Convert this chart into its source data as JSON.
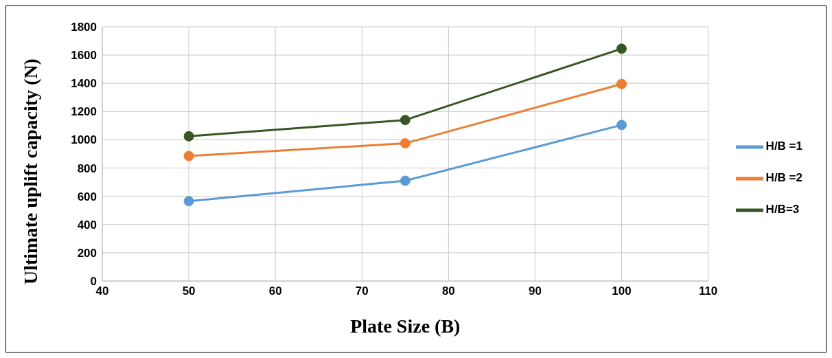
{
  "chart_data": {
    "type": "line",
    "xlabel": "Plate Size (B)",
    "ylabel": "Ultimate uplift capacity (N)",
    "x": [
      50,
      75,
      100
    ],
    "series": [
      {
        "name": "H/B =1",
        "color": "#5b9bd5",
        "values": [
          565,
          710,
          1105
        ]
      },
      {
        "name": "H/B =2",
        "color": "#ed7d31",
        "values": [
          885,
          975,
          1395
        ]
      },
      {
        "name": "H/B=3",
        "color": "#375623",
        "values": [
          1025,
          1140,
          1645
        ]
      }
    ],
    "xlim": [
      40,
      110
    ],
    "xticks": [
      40,
      50,
      60,
      70,
      80,
      90,
      100,
      110
    ],
    "ylim": [
      0,
      1800
    ],
    "yticks": [
      0,
      200,
      400,
      600,
      800,
      1000,
      1200,
      1400,
      1600,
      1800
    ],
    "grid": true,
    "legend": "right",
    "marker": "circle",
    "line_style": "solid"
  }
}
